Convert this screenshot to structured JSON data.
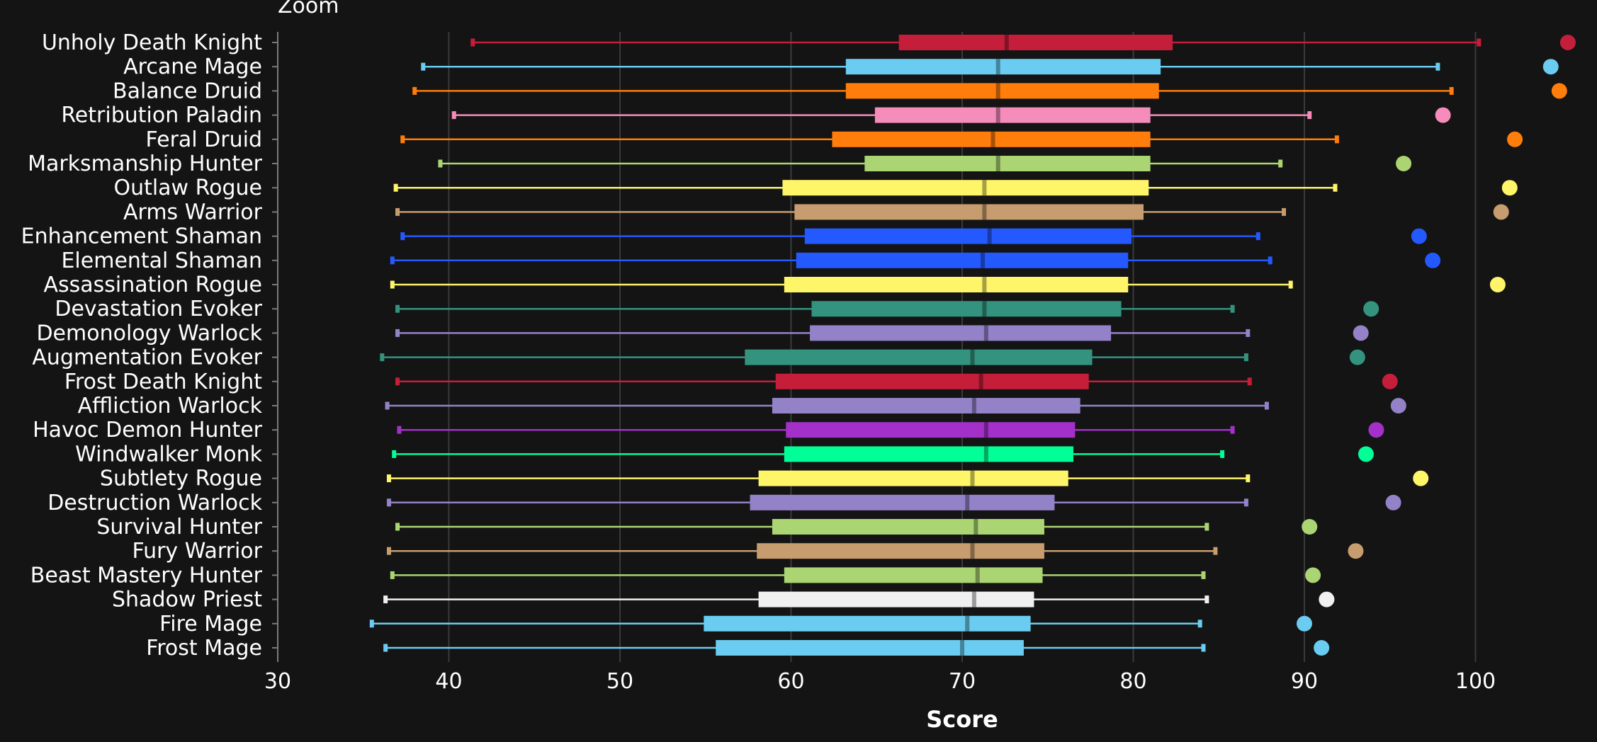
{
  "zoom_label": "Zoom",
  "chart_data": {
    "type": "box",
    "xlabel": "Score",
    "ylabel": "",
    "xlim": [
      30,
      106
    ],
    "ticks": [
      30,
      40,
      50,
      60,
      70,
      80,
      90,
      100
    ],
    "grid": "vertical",
    "rows": [
      {
        "label": "Unholy Death Knight",
        "color": "#c41e3a",
        "min": 41.4,
        "q1": 66.3,
        "median": 72.6,
        "q3": 82.3,
        "max": 100.2,
        "outlier": 105.4
      },
      {
        "label": "Arcane Mage",
        "color": "#69ccf0",
        "min": 38.5,
        "q1": 63.2,
        "median": 72.1,
        "q3": 81.6,
        "max": 97.8,
        "outlier": 104.4
      },
      {
        "label": "Balance Druid",
        "color": "#ff7d0a",
        "min": 38.0,
        "q1": 63.2,
        "median": 72.1,
        "q3": 81.5,
        "max": 98.6,
        "outlier": 104.9
      },
      {
        "label": "Retribution Paladin",
        "color": "#f58cba",
        "min": 40.3,
        "q1": 64.9,
        "median": 72.1,
        "q3": 81.0,
        "max": 90.3,
        "outlier": 98.1
      },
      {
        "label": "Feral Druid",
        "color": "#ff7d0a",
        "min": 37.3,
        "q1": 62.4,
        "median": 71.8,
        "q3": 81.0,
        "max": 91.9,
        "outlier": 102.3
      },
      {
        "label": "Marksmanship Hunter",
        "color": "#abd473",
        "min": 39.5,
        "q1": 64.3,
        "median": 72.1,
        "q3": 81.0,
        "max": 88.6,
        "outlier": 95.8
      },
      {
        "label": "Outlaw Rogue",
        "color": "#fff569",
        "min": 36.9,
        "q1": 59.5,
        "median": 71.3,
        "q3": 80.9,
        "max": 91.8,
        "outlier": 102.0
      },
      {
        "label": "Arms Warrior",
        "color": "#c79c6e",
        "min": 37.0,
        "q1": 60.2,
        "median": 71.3,
        "q3": 80.6,
        "max": 88.8,
        "outlier": 101.5
      },
      {
        "label": "Enhancement Shaman",
        "color": "#2459ff",
        "min": 37.3,
        "q1": 60.8,
        "median": 71.6,
        "q3": 79.9,
        "max": 87.3,
        "outlier": 96.7
      },
      {
        "label": "Elemental Shaman",
        "color": "#2459ff",
        "min": 36.7,
        "q1": 60.3,
        "median": 71.2,
        "q3": 79.7,
        "max": 88.0,
        "outlier": 97.5
      },
      {
        "label": "Assassination Rogue",
        "color": "#fff569",
        "min": 36.7,
        "q1": 59.6,
        "median": 71.3,
        "q3": 79.7,
        "max": 89.2,
        "outlier": 101.3
      },
      {
        "label": "Devastation Evoker",
        "color": "#33937f",
        "min": 37.0,
        "q1": 61.2,
        "median": 71.3,
        "q3": 79.3,
        "max": 85.8,
        "outlier": 93.9
      },
      {
        "label": "Demonology Warlock",
        "color": "#9482c9",
        "min": 37.0,
        "q1": 61.1,
        "median": 71.4,
        "q3": 78.7,
        "max": 86.7,
        "outlier": 93.3
      },
      {
        "label": "Augmentation Evoker",
        "color": "#33937f",
        "min": 36.1,
        "q1": 57.3,
        "median": 70.6,
        "q3": 77.6,
        "max": 86.6,
        "outlier": 93.1
      },
      {
        "label": "Frost Death Knight",
        "color": "#c41e3a",
        "min": 37.0,
        "q1": 59.1,
        "median": 71.1,
        "q3": 77.4,
        "max": 86.8,
        "outlier": 95.0
      },
      {
        "label": "Affliction Warlock",
        "color": "#9482c9",
        "min": 36.4,
        "q1": 58.9,
        "median": 70.7,
        "q3": 76.9,
        "max": 87.8,
        "outlier": 95.5
      },
      {
        "label": "Havoc Demon Hunter",
        "color": "#a330c9",
        "min": 37.1,
        "q1": 59.7,
        "median": 71.4,
        "q3": 76.6,
        "max": 85.8,
        "outlier": 94.2
      },
      {
        "label": "Windwalker Monk",
        "color": "#00ff96",
        "min": 36.8,
        "q1": 59.6,
        "median": 71.4,
        "q3": 76.5,
        "max": 85.2,
        "outlier": 93.6
      },
      {
        "label": "Subtlety Rogue",
        "color": "#fff569",
        "min": 36.5,
        "q1": 58.1,
        "median": 70.6,
        "q3": 76.2,
        "max": 86.7,
        "outlier": 96.8
      },
      {
        "label": "Destruction Warlock",
        "color": "#9482c9",
        "min": 36.5,
        "q1": 57.6,
        "median": 70.3,
        "q3": 75.4,
        "max": 86.6,
        "outlier": 95.2
      },
      {
        "label": "Survival Hunter",
        "color": "#abd473",
        "min": 37.0,
        "q1": 58.9,
        "median": 70.8,
        "q3": 74.8,
        "max": 84.3,
        "outlier": 90.3
      },
      {
        "label": "Fury Warrior",
        "color": "#c79c6e",
        "min": 36.5,
        "q1": 58.0,
        "median": 70.6,
        "q3": 74.8,
        "max": 84.8,
        "outlier": 93.0
      },
      {
        "label": "Beast Mastery Hunter",
        "color": "#abd473",
        "min": 36.7,
        "q1": 59.6,
        "median": 70.9,
        "q3": 74.7,
        "max": 84.1,
        "outlier": 90.5
      },
      {
        "label": "Shadow Priest",
        "color": "#f0f0f0",
        "min": 36.3,
        "q1": 58.1,
        "median": 70.7,
        "q3": 74.2,
        "max": 84.3,
        "outlier": 91.3
      },
      {
        "label": "Fire Mage",
        "color": "#69ccf0",
        "min": 35.5,
        "q1": 54.9,
        "median": 70.3,
        "q3": 74.0,
        "max": 83.9,
        "outlier": 90.0
      },
      {
        "label": "Frost Mage",
        "color": "#69ccf0",
        "min": 36.3,
        "q1": 55.6,
        "median": 70.0,
        "q3": 73.6,
        "max": 84.1,
        "outlier": 91.0
      }
    ]
  }
}
